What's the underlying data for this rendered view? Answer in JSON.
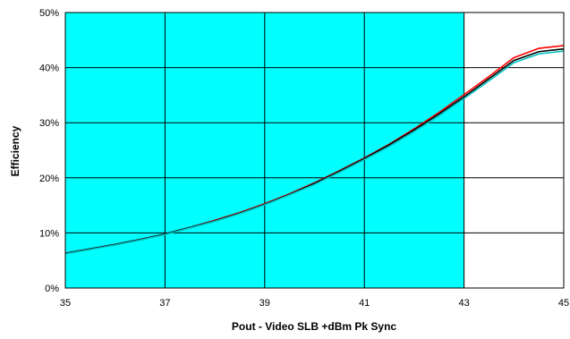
{
  "chart_data": {
    "type": "line",
    "xlabel": "Pout - Video SLB +dBm Pk Sync",
    "ylabel": "Efficiency",
    "xlim": [
      35,
      45
    ],
    "ylim": [
      0,
      50
    ],
    "x_ticks": [
      35,
      37,
      39,
      41,
      43,
      45
    ],
    "x_tick_labels": [
      "35",
      "37",
      "39",
      "41",
      "43",
      "45"
    ],
    "y_ticks": [
      0,
      10,
      20,
      30,
      40,
      50
    ],
    "y_tick_labels": [
      "0%",
      "10%",
      "20%",
      "30%",
      "40%",
      "50%"
    ],
    "grid": true,
    "shaded_region": {
      "x": [
        35,
        43
      ],
      "color": "#00ffff"
    },
    "x": [
      35,
      35.5,
      36,
      36.5,
      37,
      37.5,
      38,
      38.5,
      39,
      39.5,
      40,
      40.5,
      41,
      41.5,
      42,
      42.5,
      43,
      43.5,
      44,
      44.5,
      45
    ],
    "series": [
      {
        "color": "#ff0000",
        "values": [
          6.3,
          7.1,
          7.9,
          8.8,
          9.8,
          11.0,
          12.3,
          13.7,
          15.3,
          17.1,
          19.1,
          21.3,
          23.6,
          26.1,
          28.9,
          31.9,
          35.1,
          38.4,
          41.8,
          43.5,
          44.0
        ]
      },
      {
        "color": "#000000",
        "values": [
          6.3,
          7.1,
          7.9,
          8.8,
          9.8,
          11.0,
          12.2,
          13.6,
          15.2,
          17.0,
          19.0,
          21.2,
          23.5,
          26.0,
          28.7,
          31.6,
          34.7,
          38.0,
          41.3,
          42.9,
          43.4
        ]
      },
      {
        "color": "#00c0c0",
        "values": [
          6.2,
          7.0,
          7.8,
          8.7,
          9.7,
          10.9,
          12.1,
          13.5,
          15.1,
          16.9,
          18.8,
          21.0,
          23.3,
          25.7,
          28.4,
          31.3,
          34.4,
          37.6,
          40.9,
          42.5,
          43.0
        ]
      }
    ]
  }
}
